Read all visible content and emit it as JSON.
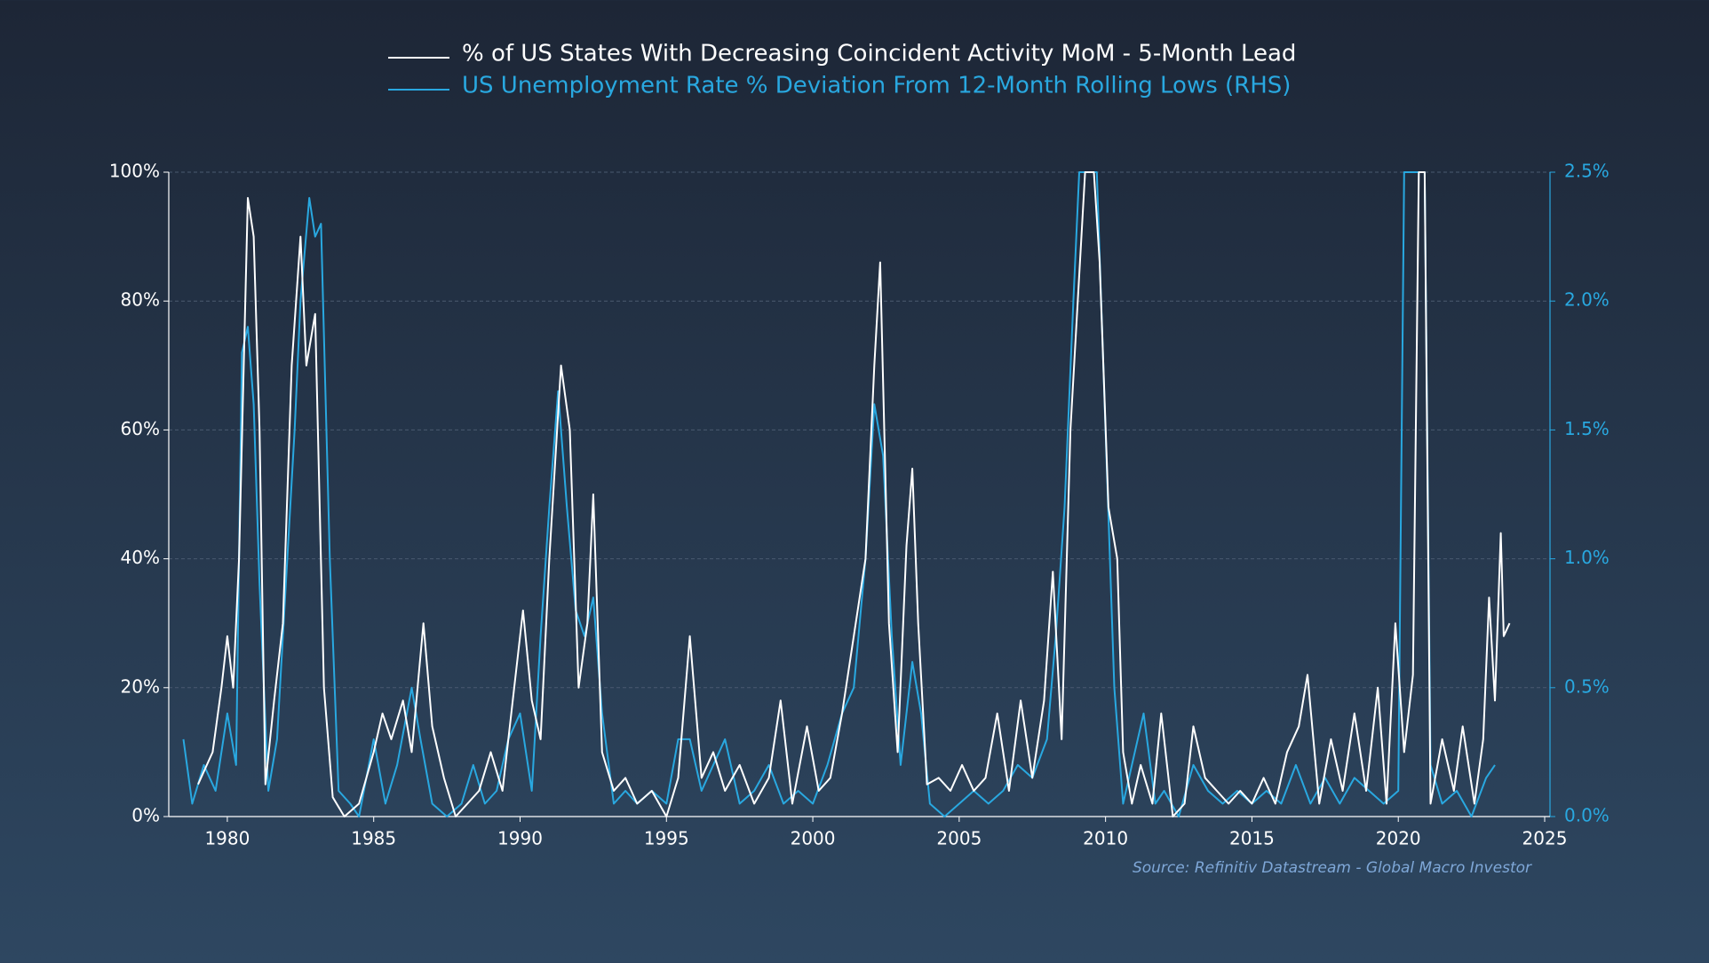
{
  "chart_data": {
    "type": "line",
    "source": "Source: Refinitiv Datastream - Global Macro Investor",
    "xlim": [
      1978,
      2025
    ],
    "xticks": [
      1980,
      1985,
      1990,
      1995,
      2000,
      2005,
      2010,
      2015,
      2020,
      2025
    ],
    "ylim": [
      0,
      100
    ],
    "yticks": [
      {
        "value": 0,
        "label": "0%"
      },
      {
        "value": 20,
        "label": "20%"
      },
      {
        "value": 40,
        "label": "40%"
      },
      {
        "value": 60,
        "label": "60%"
      },
      {
        "value": 80,
        "label": "80%"
      },
      {
        "value": 100,
        "label": "100%"
      }
    ],
    "y2lim": [
      0,
      2.5
    ],
    "y2ticks": [
      {
        "value": 0,
        "label": "0.0%"
      },
      {
        "value": 0.5,
        "label": "0.5%"
      },
      {
        "value": 1,
        "label": "1.0%"
      },
      {
        "value": 1.5,
        "label": "1.5%"
      },
      {
        "value": 2,
        "label": "2.0%"
      },
      {
        "value": 2.5,
        "label": "2.5%"
      }
    ],
    "grid": true,
    "legend": "top",
    "series": [
      {
        "name": "% of US States With Decreasing Coincident Activity MoM - 5-Month Lead",
        "color": "#ffffff",
        "x": [
          1979.0,
          1979.5,
          1979.8,
          1980.0,
          1980.2,
          1980.4,
          1980.7,
          1980.9,
          1981.1,
          1981.3,
          1981.6,
          1981.9,
          1982.2,
          1982.5,
          1982.7,
          1983.0,
          1983.3,
          1983.6,
          1984.0,
          1984.5,
          1985.0,
          1985.3,
          1985.6,
          1986.0,
          1986.3,
          1986.7,
          1987.0,
          1987.4,
          1987.8,
          1988.2,
          1988.6,
          1989.0,
          1989.4,
          1989.8,
          1990.1,
          1990.4,
          1990.7,
          1991.0,
          1991.4,
          1991.7,
          1992.0,
          1992.3,
          1992.5,
          1992.8,
          1993.2,
          1993.6,
          1994.0,
          1994.5,
          1995.0,
          1995.4,
          1995.8,
          1996.2,
          1996.6,
          1997.0,
          1997.5,
          1998.0,
          1998.5,
          1998.9,
          1999.3,
          1999.8,
          2000.2,
          2000.6,
          2001.0,
          2001.4,
          2001.8,
          2002.1,
          2002.3,
          2002.6,
          2002.9,
          2003.2,
          2003.4,
          2003.6,
          2003.9,
          2004.3,
          2004.7,
          2005.1,
          2005.5,
          2005.9,
          2006.3,
          2006.7,
          2007.1,
          2007.5,
          2007.9,
          2008.2,
          2008.5,
          2008.8,
          2009.0,
          2009.3,
          2009.6,
          2009.8,
          2010.1,
          2010.4,
          2010.6,
          2010.9,
          2011.2,
          2011.6,
          2011.9,
          2012.3,
          2012.7,
          2013.0,
          2013.4,
          2013.8,
          2014.2,
          2014.6,
          2015.0,
          2015.4,
          2015.8,
          2016.2,
          2016.6,
          2016.9,
          2017.3,
          2017.7,
          2018.1,
          2018.5,
          2018.9,
          2019.3,
          2019.6,
          2019.9,
          2020.2,
          2020.5,
          2020.7,
          2020.9,
          2021.1,
          2021.5,
          2021.9,
          2022.2,
          2022.6,
          2022.9,
          2023.1,
          2023.3,
          2023.5,
          2023.6,
          2023.8
        ],
        "values": [
          5,
          10,
          20,
          28,
          20,
          40,
          96,
          90,
          60,
          5,
          18,
          30,
          70,
          90,
          70,
          78,
          20,
          3,
          0,
          2,
          10,
          16,
          12,
          18,
          10,
          30,
          14,
          6,
          0,
          2,
          4,
          10,
          4,
          20,
          32,
          18,
          12,
          40,
          70,
          60,
          20,
          30,
          50,
          10,
          4,
          6,
          2,
          4,
          0,
          6,
          28,
          6,
          10,
          4,
          8,
          2,
          6,
          18,
          2,
          14,
          4,
          6,
          16,
          28,
          40,
          70,
          86,
          30,
          10,
          42,
          54,
          30,
          5,
          6,
          4,
          8,
          4,
          6,
          16,
          4,
          18,
          6,
          18,
          38,
          12,
          60,
          76,
          100,
          100,
          86,
          48,
          40,
          10,
          2,
          8,
          2,
          16,
          0,
          2,
          14,
          6,
          4,
          2,
          4,
          2,
          6,
          2,
          10,
          14,
          22,
          2,
          12,
          4,
          16,
          4,
          20,
          2,
          30,
          10,
          22,
          100,
          100,
          2,
          12,
          4,
          14,
          2,
          12,
          34,
          18,
          44,
          28,
          30
        ]
      },
      {
        "name": "US Unemployment Rate % Deviation From 12-Month Rolling Lows (RHS)",
        "color": "#29a8e0",
        "axis": "y2",
        "x": [
          1978.5,
          1978.8,
          1979.2,
          1979.6,
          1980.0,
          1980.3,
          1980.5,
          1980.7,
          1980.9,
          1981.1,
          1981.4,
          1981.7,
          1982.0,
          1982.3,
          1982.5,
          1982.8,
          1983.0,
          1983.2,
          1983.5,
          1983.8,
          1984.2,
          1984.5,
          1985.0,
          1985.4,
          1985.8,
          1986.3,
          1986.6,
          1987.0,
          1987.5,
          1988.0,
          1988.4,
          1988.8,
          1989.2,
          1989.6,
          1990.0,
          1990.4,
          1990.7,
          1991.0,
          1991.3,
          1991.6,
          1991.9,
          1992.2,
          1992.5,
          1992.8,
          1993.2,
          1993.6,
          1994.0,
          1994.5,
          1995.0,
          1995.4,
          1995.8,
          1996.2,
          1996.6,
          1997.0,
          1997.5,
          1998.0,
          1998.5,
          1999.0,
          1999.5,
          2000.0,
          2000.5,
          2001.0,
          2001.4,
          2001.8,
          2002.1,
          2002.4,
          2002.7,
          2003.0,
          2003.4,
          2003.7,
          2004.0,
          2004.5,
          2005.0,
          2005.5,
          2006.0,
          2006.5,
          2007.0,
          2007.5,
          2008.0,
          2008.3,
          2008.6,
          2008.9,
          2009.1,
          2009.4,
          2009.7,
          2010.0,
          2010.3,
          2010.6,
          2010.9,
          2011.3,
          2011.7,
          2012.0,
          2012.5,
          2013.0,
          2013.5,
          2014.0,
          2014.5,
          2015.0,
          2015.5,
          2016.0,
          2016.5,
          2017.0,
          2017.5,
          2018.0,
          2018.5,
          2019.0,
          2019.5,
          2020.0,
          2020.2,
          2020.5,
          2020.9,
          2021.1,
          2021.5,
          2022.0,
          2022.5,
          2023.0,
          2023.3
        ],
        "values": [
          0.3,
          0.05,
          0.2,
          0.1,
          0.4,
          0.2,
          1.8,
          1.9,
          1.6,
          0.9,
          0.1,
          0.3,
          0.9,
          1.5,
          2.0,
          2.4,
          2.25,
          2.3,
          1.0,
          0.1,
          0.05,
          0,
          0.3,
          0.05,
          0.2,
          0.5,
          0.3,
          0.05,
          0,
          0.05,
          0.2,
          0.05,
          0.1,
          0.3,
          0.4,
          0.1,
          0.7,
          1.2,
          1.65,
          1.2,
          0.8,
          0.7,
          0.85,
          0.4,
          0.05,
          0.1,
          0.05,
          0.1,
          0.05,
          0.3,
          0.3,
          0.1,
          0.2,
          0.3,
          0.05,
          0.1,
          0.2,
          0.05,
          0.1,
          0.05,
          0.2,
          0.4,
          0.5,
          1.0,
          1.6,
          1.4,
          0.7,
          0.2,
          0.6,
          0.4,
          0.05,
          0,
          0.05,
          0.1,
          0.05,
          0.1,
          0.2,
          0.15,
          0.3,
          0.7,
          1.2,
          2.0,
          2.5,
          2.5,
          2.5,
          1.5,
          0.5,
          0.05,
          0.2,
          0.4,
          0.05,
          0.1,
          0,
          0.2,
          0.1,
          0.05,
          0.1,
          0.05,
          0.1,
          0.05,
          0.2,
          0.05,
          0.15,
          0.05,
          0.15,
          0.1,
          0.05,
          0.1,
          2.5,
          2.5,
          2.5,
          0.2,
          0.05,
          0.1,
          0,
          0.15,
          0.2
        ]
      }
    ]
  }
}
